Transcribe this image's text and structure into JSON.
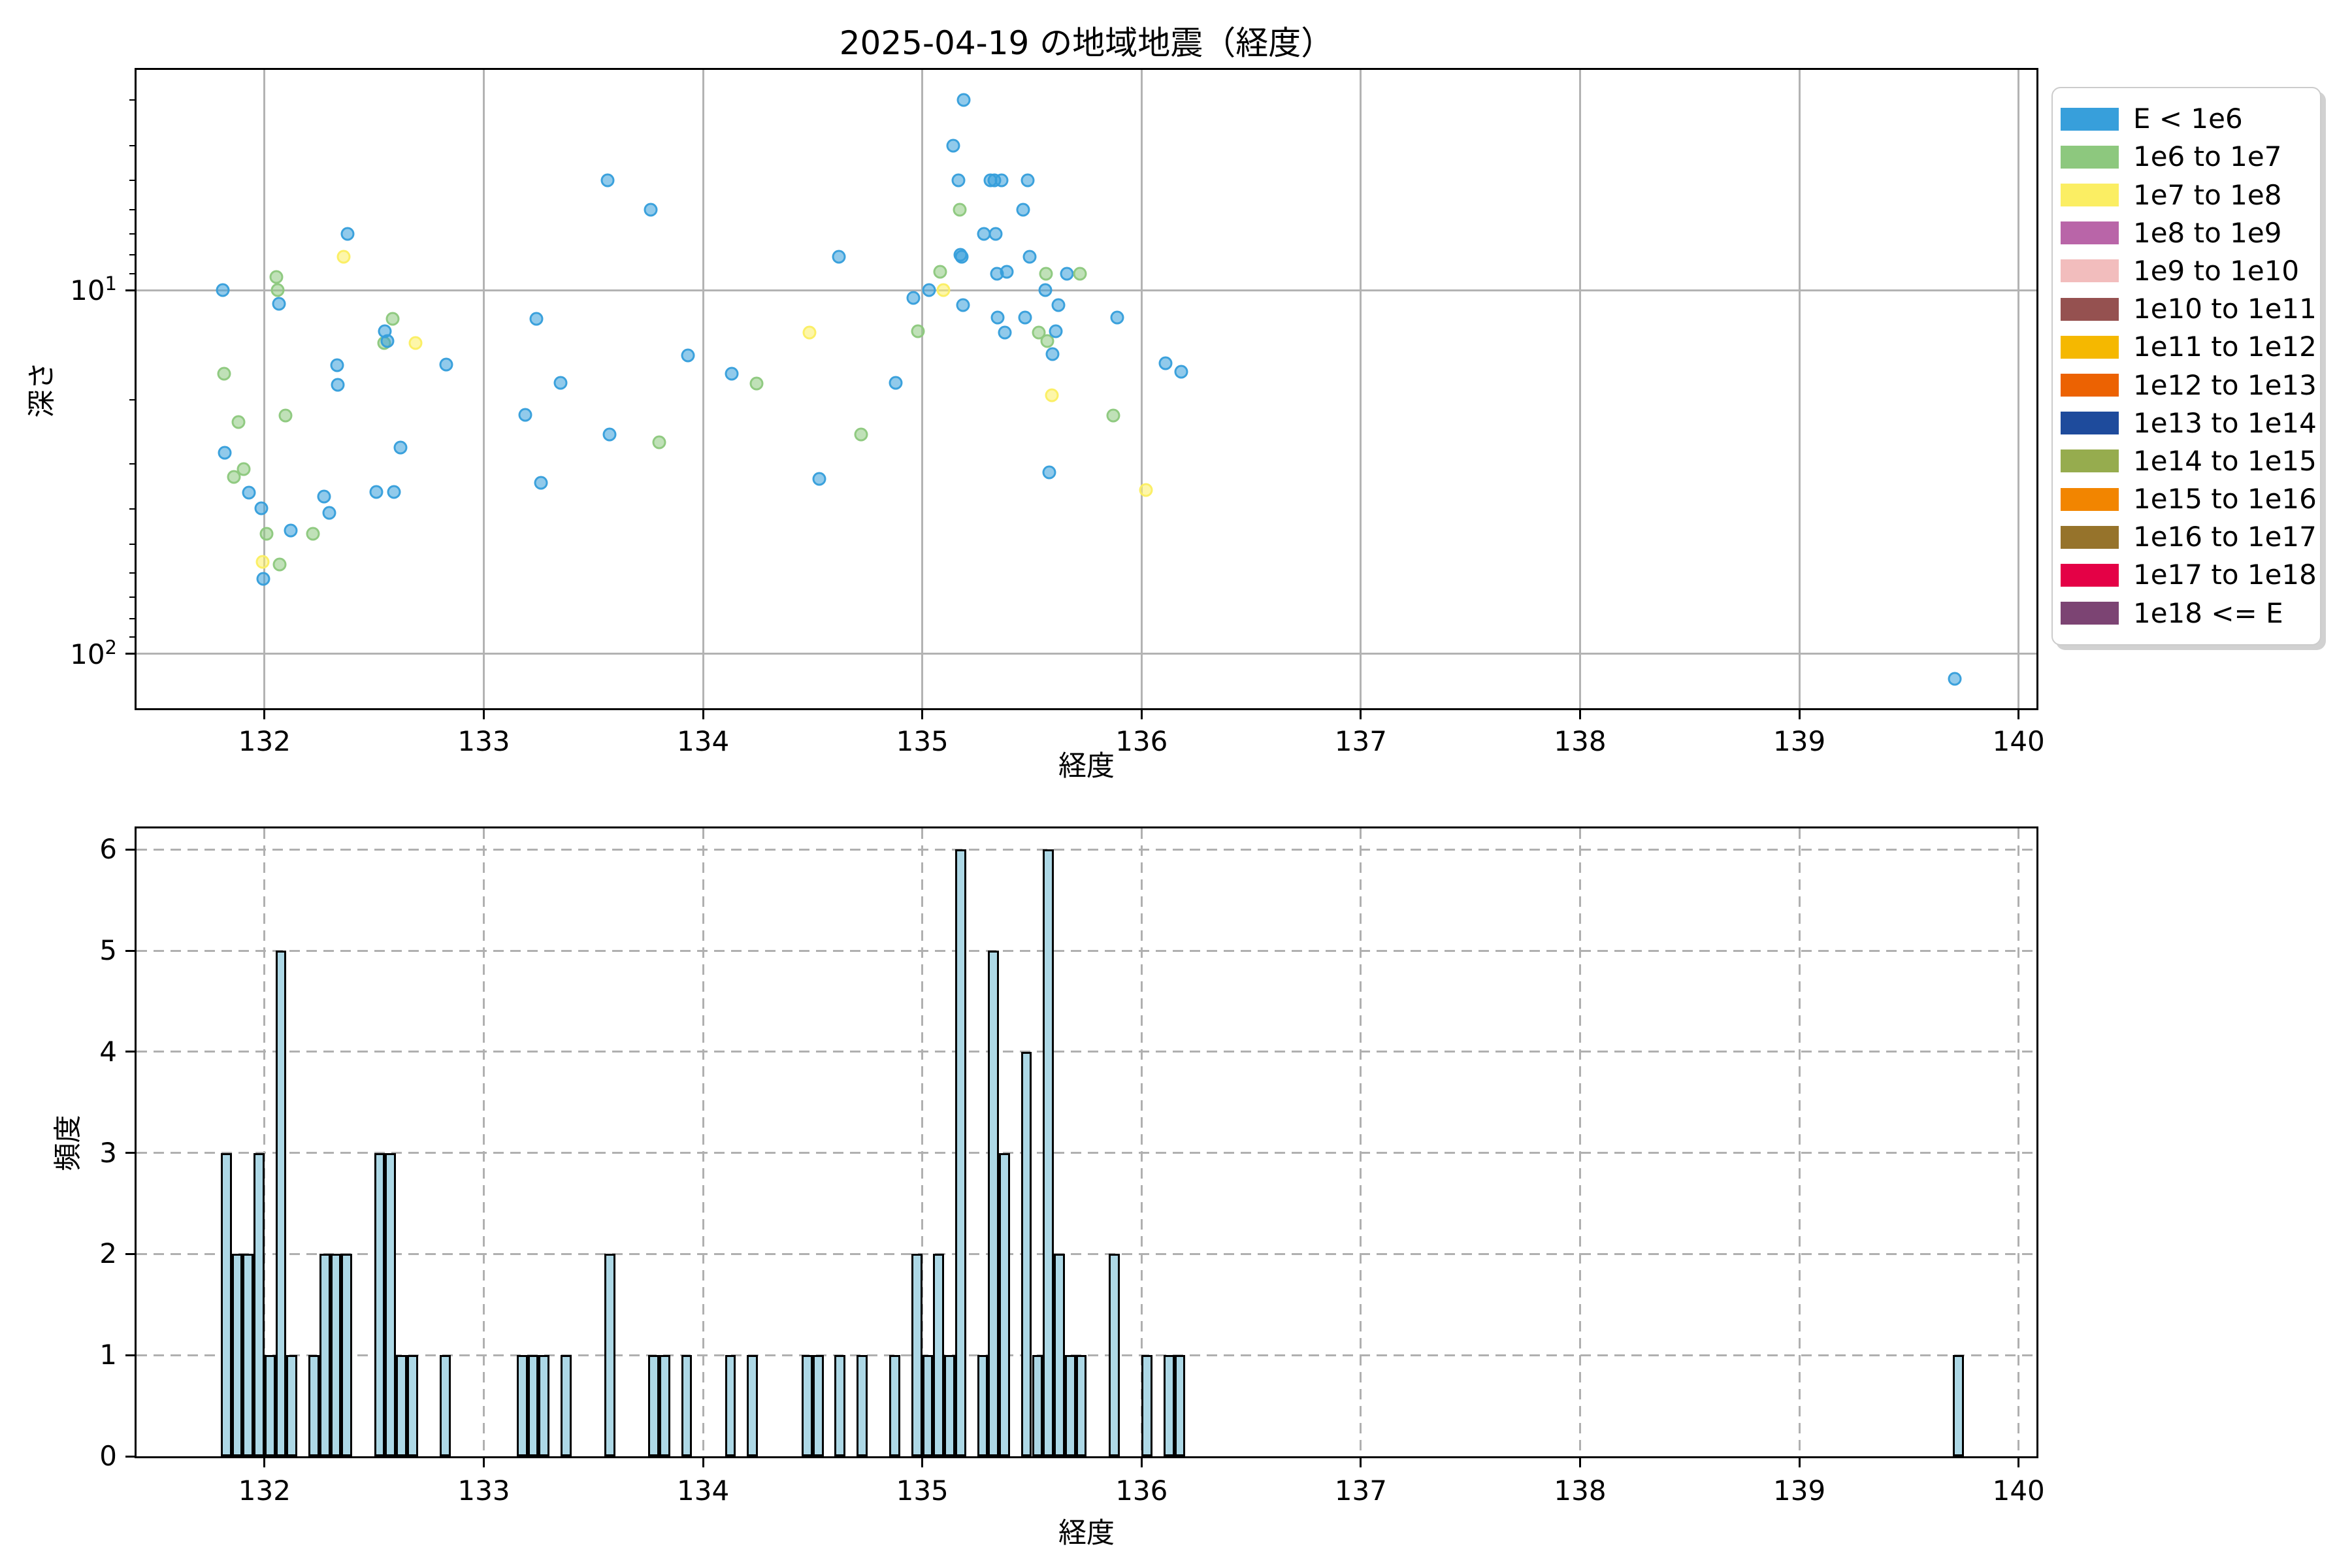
{
  "title": "2025-04-19 の地域地震（経度）",
  "chart_data": [
    {
      "type": "scatter",
      "title": "2025-04-19 の地域地震（経度）",
      "xlabel": "経度",
      "ylabel": "深さ",
      "x_ticks": [
        132,
        133,
        134,
        135,
        136,
        137,
        138,
        139,
        140
      ],
      "xlim": [
        131.42,
        140.1
      ],
      "y_scale": "log",
      "y_inverted": true,
      "depth_range_km": [
        2.5,
        140.6
      ],
      "y_major_ticks_km": [
        10,
        100
      ],
      "y_minor_ticks_km": [
        3,
        4,
        5,
        6,
        7,
        8,
        9,
        20,
        30,
        40,
        50,
        60,
        70,
        80,
        90
      ],
      "grid": "solid",
      "legend_title": null,
      "legend_position": "outside-right",
      "categories": [
        "E < 1e6",
        "1e6 to 1e7",
        "1e7 to 1e8",
        "1e8 to 1e9",
        "1e9 to 1e10",
        "1e10 to 1e11",
        "1e11 to 1e12",
        "1e12 to 1e13",
        "1e13 to 1e14",
        "1e14 to 1e15",
        "1e15 to 1e16",
        "1e16 to 1e17",
        "1e17 to 1e18",
        "1e18 <= E"
      ],
      "category_colors": [
        "#379fdb",
        "#8dc87e",
        "#fbee63",
        "#b965a8",
        "#f2bdbd",
        "#955150",
        "#f5b800",
        "#ec6202",
        "#1e4b9c",
        "#96ac4e",
        "#f28500",
        "#96732b",
        "#e40146",
        "#7c4473"
      ],
      "points_format": [
        "longitude_deg",
        "depth_km",
        "category_index"
      ],
      "points": [
        [
          131.81,
          10.0,
          0
        ],
        [
          131.815,
          17.0,
          1
        ],
        [
          131.82,
          28.0,
          0
        ],
        [
          131.86,
          32.7,
          1
        ],
        [
          131.88,
          23.1,
          1
        ],
        [
          131.905,
          31.1,
          1
        ],
        [
          131.93,
          36.1,
          0
        ],
        [
          131.985,
          39.8,
          0
        ],
        [
          131.99,
          55.9,
          2
        ],
        [
          131.995,
          62.2,
          0
        ],
        [
          132.01,
          46.8,
          1
        ],
        [
          132.055,
          9.2,
          1
        ],
        [
          132.06,
          10.0,
          1
        ],
        [
          132.065,
          10.9,
          0
        ],
        [
          132.07,
          56.9,
          1
        ],
        [
          132.095,
          22.1,
          1
        ],
        [
          132.12,
          45.9,
          0
        ],
        [
          132.22,
          46.8,
          1
        ],
        [
          132.27,
          37.0,
          0
        ],
        [
          132.295,
          41.0,
          0
        ],
        [
          132.33,
          16.1,
          0
        ],
        [
          132.335,
          18.2,
          0
        ],
        [
          132.36,
          8.1,
          2
        ],
        [
          132.38,
          7.0,
          0
        ],
        [
          132.51,
          35.9,
          0
        ],
        [
          132.545,
          14.0,
          1
        ],
        [
          132.55,
          13.0,
          0
        ],
        [
          132.56,
          13.8,
          0
        ],
        [
          132.585,
          12.0,
          1
        ],
        [
          132.59,
          35.9,
          0
        ],
        [
          132.62,
          27.1,
          0
        ],
        [
          132.69,
          14.0,
          2
        ],
        [
          132.83,
          16.0,
          0
        ],
        [
          133.19,
          22.0,
          0
        ],
        [
          133.24,
          12.0,
          0
        ],
        [
          133.26,
          33.9,
          0
        ],
        [
          133.35,
          18.0,
          0
        ],
        [
          133.565,
          5.0,
          0
        ],
        [
          133.575,
          24.9,
          0
        ],
        [
          133.76,
          6.0,
          0
        ],
        [
          133.8,
          26.2,
          1
        ],
        [
          133.93,
          15.1,
          0
        ],
        [
          134.13,
          17.0,
          0
        ],
        [
          134.245,
          18.1,
          1
        ],
        [
          134.485,
          13.1,
          2
        ],
        [
          134.53,
          33.0,
          0
        ],
        [
          134.62,
          8.1,
          0
        ],
        [
          134.72,
          25.0,
          1
        ],
        [
          134.88,
          18.0,
          0
        ],
        [
          134.96,
          10.5,
          0
        ],
        [
          134.98,
          13.0,
          1
        ],
        [
          135.03,
          10.0,
          0
        ],
        [
          135.08,
          8.9,
          1
        ],
        [
          135.095,
          10.0,
          2
        ],
        [
          135.14,
          4.0,
          0
        ],
        [
          135.165,
          5.0,
          0
        ],
        [
          135.17,
          6.0,
          1
        ],
        [
          135.175,
          8.0,
          0
        ],
        [
          135.18,
          8.1,
          0
        ],
        [
          135.185,
          11.0,
          0
        ],
        [
          135.19,
          3.0,
          0
        ],
        [
          135.28,
          7.0,
          0
        ],
        [
          135.31,
          5.0,
          0
        ],
        [
          135.33,
          5.0,
          0
        ],
        [
          135.335,
          7.0,
          0
        ],
        [
          135.34,
          9.0,
          0
        ],
        [
          135.345,
          11.9,
          0
        ],
        [
          135.36,
          5.0,
          0
        ],
        [
          135.375,
          13.1,
          0
        ],
        [
          135.385,
          8.9,
          0
        ],
        [
          135.46,
          6.0,
          0
        ],
        [
          135.47,
          11.9,
          0
        ],
        [
          135.48,
          5.0,
          0
        ],
        [
          135.49,
          8.1,
          0
        ],
        [
          135.53,
          13.1,
          1
        ],
        [
          135.56,
          10.0,
          0
        ],
        [
          135.565,
          9.0,
          1
        ],
        [
          135.57,
          13.8,
          1
        ],
        [
          135.58,
          31.7,
          0
        ],
        [
          135.59,
          19.5,
          2
        ],
        [
          135.595,
          15.0,
          0
        ],
        [
          135.61,
          13.0,
          0
        ],
        [
          135.62,
          11.0,
          0
        ],
        [
          135.66,
          9.0,
          0
        ],
        [
          135.72,
          9.0,
          1
        ],
        [
          135.87,
          22.1,
          1
        ],
        [
          135.89,
          11.9,
          0
        ],
        [
          136.02,
          35.5,
          2
        ],
        [
          136.11,
          15.9,
          0
        ],
        [
          136.18,
          16.8,
          0
        ],
        [
          139.71,
          117.0,
          0
        ]
      ]
    },
    {
      "type": "histogram",
      "xlabel": "経度",
      "ylabel": "頻度",
      "x_ticks": [
        132,
        133,
        134,
        135,
        136,
        137,
        138,
        139,
        140
      ],
      "xlim": [
        131.42,
        140.1
      ],
      "y_ticks": [
        0,
        1,
        2,
        3,
        4,
        5,
        6
      ],
      "ylim": [
        0,
        6.2
      ],
      "grid": "dashed",
      "bar_color": "#add8e6",
      "bar_edge_color": "#000000",
      "bin_width_deg": 0.05,
      "bars_format": [
        "bin_start_longitude_deg",
        "count"
      ],
      "bars": [
        [
          131.8,
          3
        ],
        [
          131.85,
          2
        ],
        [
          131.9,
          2
        ],
        [
          131.95,
          3
        ],
        [
          132.0,
          1
        ],
        [
          132.05,
          5
        ],
        [
          132.1,
          1
        ],
        [
          132.2,
          1
        ],
        [
          132.25,
          2
        ],
        [
          132.3,
          2
        ],
        [
          132.35,
          2
        ],
        [
          132.5,
          3
        ],
        [
          132.55,
          3
        ],
        [
          132.6,
          1
        ],
        [
          132.65,
          1
        ],
        [
          132.8,
          1
        ],
        [
          133.15,
          1
        ],
        [
          133.2,
          1
        ],
        [
          133.25,
          1
        ],
        [
          133.35,
          1
        ],
        [
          133.55,
          2
        ],
        [
          133.75,
          1
        ],
        [
          133.8,
          1
        ],
        [
          133.9,
          1
        ],
        [
          134.1,
          1
        ],
        [
          134.2,
          1
        ],
        [
          134.45,
          1
        ],
        [
          134.5,
          1
        ],
        [
          134.6,
          1
        ],
        [
          134.7,
          1
        ],
        [
          134.85,
          1
        ],
        [
          134.95,
          2
        ],
        [
          135.0,
          1
        ],
        [
          135.05,
          2
        ],
        [
          135.1,
          1
        ],
        [
          135.15,
          6
        ],
        [
          135.25,
          1
        ],
        [
          135.3,
          5
        ],
        [
          135.35,
          3
        ],
        [
          135.45,
          4
        ],
        [
          135.5,
          1
        ],
        [
          135.55,
          6
        ],
        [
          135.6,
          2
        ],
        [
          135.65,
          1
        ],
        [
          135.7,
          1
        ],
        [
          135.85,
          2
        ],
        [
          136.0,
          1
        ],
        [
          136.1,
          1
        ],
        [
          136.15,
          1
        ],
        [
          139.7,
          1
        ]
      ]
    }
  ]
}
